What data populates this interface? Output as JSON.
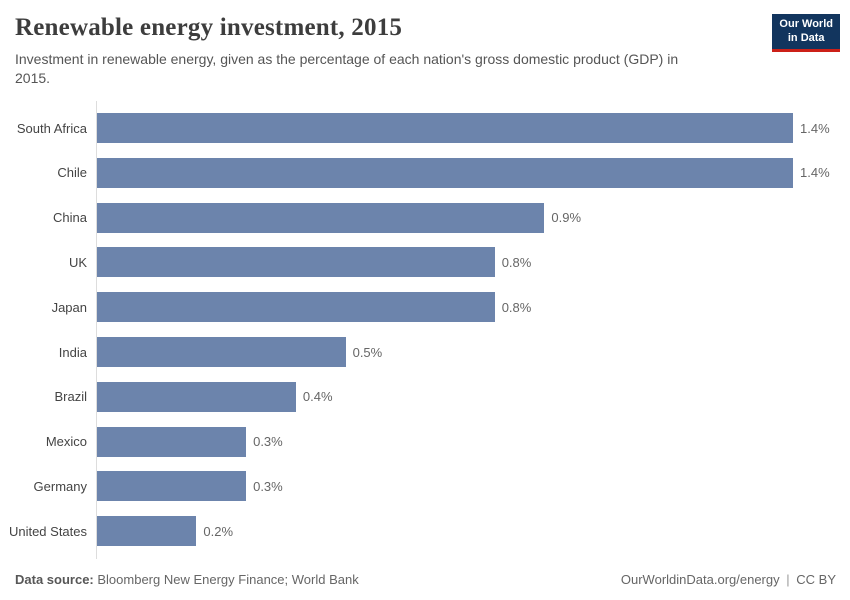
{
  "header": {
    "title": "Renewable energy investment, 2015",
    "subtitle": "Investment in renewable energy, given as the percentage of each nation's gross domestic product (GDP) in 2015.",
    "logo": {
      "line1": "Our World",
      "line2": "in Data"
    }
  },
  "chart_data": {
    "type": "bar",
    "orientation": "horizontal",
    "title": "Renewable energy investment, 2015",
    "xlabel": "",
    "ylabel": "",
    "unit": "% of GDP",
    "grid": false,
    "xmax": 1.4,
    "categories": [
      "South Africa",
      "Chile",
      "China",
      "UK",
      "Japan",
      "India",
      "Brazil",
      "Mexico",
      "Germany",
      "United States"
    ],
    "values": [
      1.4,
      1.4,
      0.9,
      0.8,
      0.8,
      0.5,
      0.4,
      0.3,
      0.3,
      0.2
    ],
    "value_labels": [
      "1.4%",
      "1.4%",
      "0.9%",
      "0.8%",
      "0.8%",
      "0.5%",
      "0.4%",
      "0.3%",
      "0.3%",
      "0.2%"
    ],
    "bar_color": "#6c84ac",
    "axis_line_color": "#dddddd"
  },
  "footer": {
    "source_label": "Data source:",
    "source_value": "Bloomberg New Energy Finance; World Bank",
    "site": "OurWorldinData.org/energy",
    "separator": "|",
    "license": "CC BY"
  },
  "colors": {
    "title": "#3d3d3d",
    "subtitle": "#555555",
    "logo_background": "#12355e",
    "logo_accent": "#cc2018",
    "bar": "#6c84ac"
  }
}
